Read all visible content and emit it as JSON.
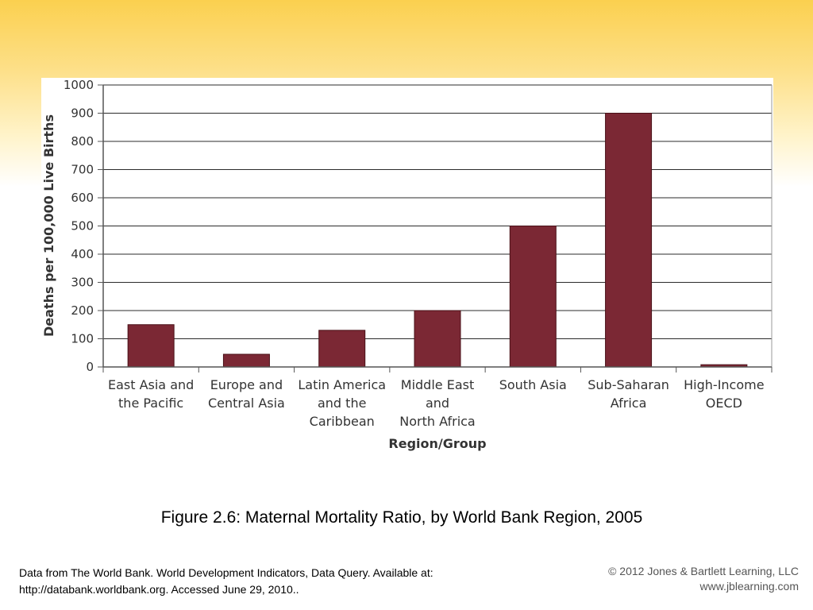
{
  "chart_data": {
    "type": "bar",
    "categories": [
      [
        "East Asia and",
        "the Pacific"
      ],
      [
        "Europe and",
        "Central Asia"
      ],
      [
        "Latin America",
        "and the",
        "Caribbean"
      ],
      [
        "Middle East",
        "and",
        "North Africa"
      ],
      [
        "South Asia"
      ],
      [
        "Sub-Saharan",
        "Africa"
      ],
      [
        "High-Income",
        "OECD"
      ]
    ],
    "values": [
      150,
      45,
      130,
      200,
      500,
      900,
      8
    ],
    "xlabel": "Region/Group",
    "ylabel": "Deaths per 100,000 Live Births",
    "ylim": [
      0,
      1000
    ],
    "yticks": [
      0,
      100,
      200,
      300,
      400,
      500,
      600,
      700,
      800,
      900,
      1000
    ],
    "grid": true,
    "bar_color": "#7b2834"
  },
  "caption": "Figure 2.6: Maternal Mortality Ratio, by World Bank Region, 2005",
  "source": {
    "line1": "Data from The World Bank. World Development Indicators, Data Query. Available at:",
    "line2": "http://databank.worldbank.org. Accessed June 29, 2010.."
  },
  "copyright": {
    "line1": "© 2012 Jones & Bartlett Learning, LLC",
    "line2": "www.jblearning.com"
  }
}
